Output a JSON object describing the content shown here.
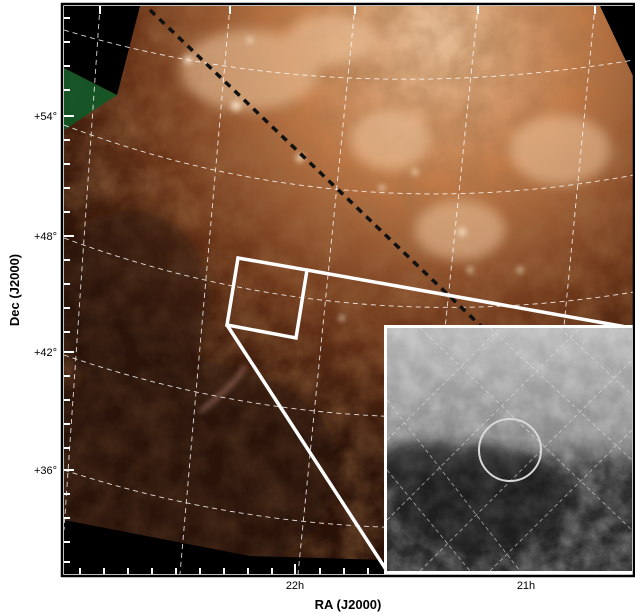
{
  "figure": {
    "xlabel": "RA (J2000)",
    "ylabel": "Dec (J2000)",
    "y_tick_labels": [
      "+54°",
      "+48°",
      "+42°",
      "+36°"
    ],
    "x_tick_labels": [
      "22h",
      "21h"
    ]
  },
  "colors": {
    "background": "#ffffff",
    "frame": "#000000",
    "mask": "#000000",
    "grid": "#ffffff",
    "highlight_box": "#ffffff",
    "dashed_line": "#111111",
    "sky_dark": "#2a1208",
    "sky_mid": "#6a3418",
    "sky_bright": "#d8a070",
    "sky_edge_green": "#0a5a28",
    "inset_light": "#c0c0c0",
    "inset_dark": "#1a1a1a"
  }
}
